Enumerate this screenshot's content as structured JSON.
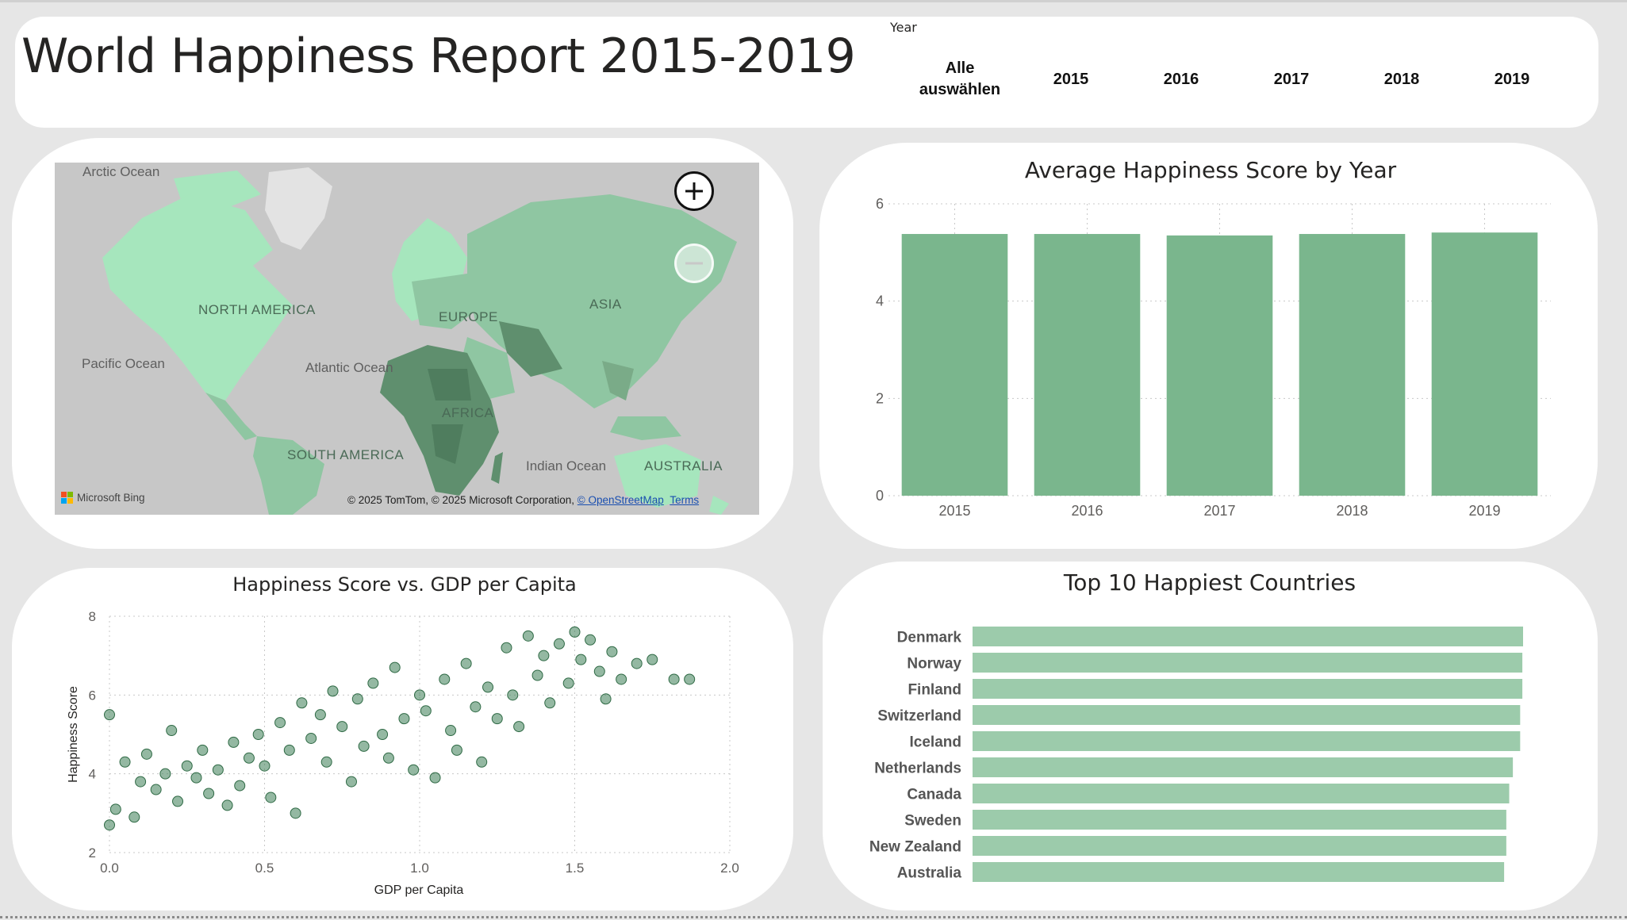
{
  "header": {
    "title": "World Happiness Report 2015-2019",
    "slicer": {
      "title": "Year",
      "items": [
        {
          "label": "Alle auswählen"
        },
        {
          "label": "2015"
        },
        {
          "label": "2016"
        },
        {
          "label": "2017"
        },
        {
          "label": "2018"
        },
        {
          "label": "2019"
        }
      ]
    }
  },
  "map": {
    "labels": {
      "arctic": "Arctic Ocean",
      "north_america": "NORTH AMERICA",
      "pacific": "Pacific Ocean",
      "atlantic": "Atlantic Ocean",
      "europe": "EUROPE",
      "asia": "ASIA",
      "africa": "AFRICA",
      "south_america": "SOUTH AMERICA",
      "indian": "Indian Ocean",
      "australia": "AUSTRALIA"
    },
    "copyright": "© 2025 TomTom, © 2025 Microsoft Corporation,",
    "osm_link": "© OpenStreetMap",
    "terms_link": "Terms",
    "bing": "Microsoft Bing",
    "zoom_in_icon": "plus-icon",
    "zoom_out_icon": "minus-icon",
    "colors": {
      "water": "#c7c7c7",
      "light": "#a6e6bd",
      "mid": "#8fc6a2",
      "dark": "#5f8f6e"
    }
  },
  "chart_data": [
    {
      "type": "bar",
      "title": "Average Happiness Score by Year",
      "categories": [
        "2015",
        "2016",
        "2017",
        "2018",
        "2019"
      ],
      "values": [
        5.38,
        5.38,
        5.35,
        5.38,
        5.41
      ],
      "ylim": [
        0,
        6
      ],
      "yticks": [
        0,
        2,
        4,
        6
      ],
      "grid": true,
      "color": "#7ab68d"
    },
    {
      "type": "scatter",
      "title": "Happiness Score vs. GDP per Capita",
      "xlabel": "GDP per Capita",
      "ylabel": "Happiness Score",
      "xlim": [
        0,
        2
      ],
      "ylim": [
        2,
        8
      ],
      "xticks": [
        "0.0",
        "0.5",
        "1.0",
        "1.5",
        "2.0"
      ],
      "yticks": [
        2,
        4,
        6,
        8
      ],
      "grid": true,
      "color": "#3d7d55",
      "points": [
        [
          0.0,
          5.5
        ],
        [
          0.0,
          2.7
        ],
        [
          0.02,
          3.1
        ],
        [
          0.05,
          4.3
        ],
        [
          0.08,
          2.9
        ],
        [
          0.1,
          3.8
        ],
        [
          0.12,
          4.5
        ],
        [
          0.15,
          3.6
        ],
        [
          0.18,
          4.0
        ],
        [
          0.2,
          5.1
        ],
        [
          0.22,
          3.3
        ],
        [
          0.25,
          4.2
        ],
        [
          0.28,
          3.9
        ],
        [
          0.3,
          4.6
        ],
        [
          0.32,
          3.5
        ],
        [
          0.35,
          4.1
        ],
        [
          0.38,
          3.2
        ],
        [
          0.4,
          4.8
        ],
        [
          0.42,
          3.7
        ],
        [
          0.45,
          4.4
        ],
        [
          0.48,
          5.0
        ],
        [
          0.5,
          4.2
        ],
        [
          0.52,
          3.4
        ],
        [
          0.55,
          5.3
        ],
        [
          0.58,
          4.6
        ],
        [
          0.6,
          3.0
        ],
        [
          0.62,
          5.8
        ],
        [
          0.65,
          4.9
        ],
        [
          0.68,
          5.5
        ],
        [
          0.7,
          4.3
        ],
        [
          0.72,
          6.1
        ],
        [
          0.75,
          5.2
        ],
        [
          0.78,
          3.8
        ],
        [
          0.8,
          5.9
        ],
        [
          0.82,
          4.7
        ],
        [
          0.85,
          6.3
        ],
        [
          0.88,
          5.0
        ],
        [
          0.9,
          4.4
        ],
        [
          0.92,
          6.7
        ],
        [
          0.95,
          5.4
        ],
        [
          0.98,
          4.1
        ],
        [
          1.0,
          6.0
        ],
        [
          1.02,
          5.6
        ],
        [
          1.05,
          3.9
        ],
        [
          1.08,
          6.4
        ],
        [
          1.1,
          5.1
        ],
        [
          1.12,
          4.6
        ],
        [
          1.15,
          6.8
        ],
        [
          1.18,
          5.7
        ],
        [
          1.2,
          4.3
        ],
        [
          1.22,
          6.2
        ],
        [
          1.25,
          5.4
        ],
        [
          1.28,
          7.2
        ],
        [
          1.3,
          6.0
        ],
        [
          1.32,
          5.2
        ],
        [
          1.35,
          7.5
        ],
        [
          1.38,
          6.5
        ],
        [
          1.4,
          7.0
        ],
        [
          1.42,
          5.8
        ],
        [
          1.45,
          7.3
        ],
        [
          1.48,
          6.3
        ],
        [
          1.5,
          7.6
        ],
        [
          1.52,
          6.9
        ],
        [
          1.55,
          7.4
        ],
        [
          1.58,
          6.6
        ],
        [
          1.6,
          5.9
        ],
        [
          1.62,
          7.1
        ],
        [
          1.65,
          6.4
        ],
        [
          1.7,
          6.8
        ],
        [
          1.75,
          6.9
        ],
        [
          1.82,
          6.4
        ],
        [
          1.87,
          6.4
        ]
      ]
    },
    {
      "type": "bar",
      "orientation": "horizontal",
      "title": "Top 10 Happiest Countries",
      "categories": [
        "Denmark",
        "Norway",
        "Finland",
        "Switzerland",
        "Iceland",
        "Netherlands",
        "Canada",
        "Sweden",
        "New Zealand",
        "Australia"
      ],
      "values": [
        7.55,
        7.54,
        7.54,
        7.51,
        7.51,
        7.41,
        7.36,
        7.32,
        7.32,
        7.29
      ],
      "color": "#9ccbab"
    }
  ]
}
